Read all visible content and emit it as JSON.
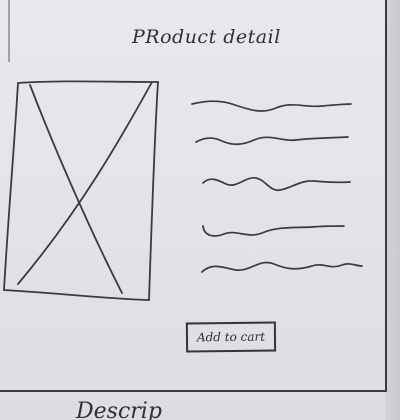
{
  "page": {
    "title": "PRoduct detail"
  },
  "product_image": {
    "kind": "image-placeholder",
    "icon": "image-placeholder-icon"
  },
  "description": {
    "line_count": 5,
    "kind": "squiggle-text-placeholder"
  },
  "actions": {
    "add_to_cart_label": "Add to cart"
  },
  "next_page": {
    "partial_text": "Descrip"
  },
  "colors": {
    "paper": "#e6e5eb",
    "ink": "#333338",
    "frame": "#3b3b40"
  }
}
